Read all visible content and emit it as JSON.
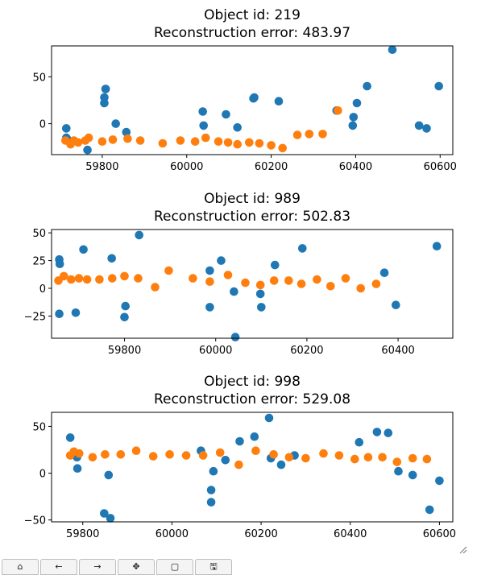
{
  "chart_data": [
    {
      "type": "scatter",
      "title": "Object id: 219\nReconstruction error: 483.97",
      "xlim": [
        59680,
        60630
      ],
      "ylim": [
        -33,
        83
      ],
      "xticks": [
        59800,
        60000,
        60200,
        60400,
        60600
      ],
      "yticks": [
        0,
        50
      ],
      "series": [
        {
          "color": "#1f77b4",
          "x": [
            59715,
            59715,
            59718,
            59765,
            59805,
            59805,
            59808,
            59808,
            59832,
            59857,
            60038,
            60040,
            60093,
            60120,
            60158,
            60160,
            60218,
            60355,
            60393,
            60395,
            60403,
            60427,
            60487,
            60550,
            60568,
            60597
          ],
          "y": [
            -5,
            -15,
            -17,
            -28,
            28,
            22,
            37,
            37,
            0,
            -9,
            13,
            -2,
            10,
            -4,
            27,
            28,
            24,
            14,
            -2,
            7,
            22,
            40,
            79,
            -2,
            -5,
            40
          ]
        },
        {
          "color": "#ff7f0e",
          "x": [
            59713,
            59725,
            59733,
            59743,
            59760,
            59768,
            59800,
            59825,
            59860,
            59890,
            59943,
            59985,
            60020,
            60045,
            60075,
            60098,
            60120,
            60148,
            60172,
            60200,
            60227,
            60262,
            60290,
            60322,
            60358
          ],
          "y": [
            -18,
            -22,
            -18,
            -20,
            -18,
            -15,
            -19,
            -17,
            -16,
            -18,
            -21,
            -18,
            -19,
            -15,
            -19,
            -20,
            -22,
            -20,
            -21,
            -23,
            -26,
            -12,
            -11,
            -11,
            14
          ]
        }
      ]
    },
    {
      "type": "scatter",
      "title": "Object id: 989\nReconstruction error: 502.83",
      "xlim": [
        59640,
        60520
      ],
      "ylim": [
        -45,
        53
      ],
      "xticks": [
        59800,
        60000,
        60200,
        60400
      ],
      "yticks": [
        -25,
        0,
        25,
        50
      ],
      "series": [
        {
          "color": "#1f77b4",
          "x": [
            59657,
            59657,
            59658,
            59693,
            59710,
            59772,
            59800,
            59802,
            59832,
            59987,
            59987,
            60012,
            60040,
            60043,
            60098,
            60100,
            60130,
            60190,
            60370,
            60395,
            60485
          ],
          "y": [
            -23,
            26,
            22,
            -22,
            35,
            27,
            -26,
            -16,
            48,
            16,
            -17,
            25,
            -3,
            -44,
            -5,
            -17,
            21,
            36,
            14,
            -15,
            38
          ]
        },
        {
          "color": "#ff7f0e",
          "x": [
            59655,
            59667,
            59683,
            59700,
            59718,
            59745,
            59773,
            59800,
            59830,
            59867,
            59897,
            59950,
            59987,
            60027,
            60065,
            60098,
            60128,
            60160,
            60188,
            60222,
            60252,
            60285,
            60318,
            60352
          ],
          "y": [
            7,
            11,
            8,
            9,
            8,
            8,
            9,
            11,
            9,
            1,
            16,
            9,
            6,
            12,
            5,
            3,
            7,
            7,
            4,
            8,
            2,
            9,
            0,
            4
          ]
        }
      ]
    },
    {
      "type": "scatter",
      "title": "Object id: 998\nReconstruction error: 529.08",
      "xlim": [
        59730,
        60630
      ],
      "ylim": [
        -52,
        65
      ],
      "xticks": [
        59800,
        60000,
        60200,
        60400,
        60600
      ],
      "yticks": [
        -50,
        0,
        50
      ],
      "series": [
        {
          "color": "#1f77b4",
          "x": [
            59772,
            59787,
            59788,
            59848,
            59858,
            59862,
            60065,
            60088,
            60088,
            60093,
            60120,
            60152,
            60185,
            60218,
            60222,
            60245,
            60275,
            60420,
            60460,
            60485,
            60508,
            60540,
            60578,
            60600
          ],
          "y": [
            38,
            17,
            5,
            -43,
            -2,
            -48,
            24,
            -18,
            -31,
            2,
            14,
            34,
            39,
            59,
            16,
            9,
            19,
            33,
            44,
            43,
            2,
            -2,
            -39,
            -8
          ]
        },
        {
          "color": "#ff7f0e",
          "x": [
            59772,
            59780,
            59792,
            59822,
            59850,
            59885,
            59920,
            59958,
            59995,
            60032,
            60070,
            60108,
            60150,
            60188,
            60228,
            60263,
            60300,
            60340,
            60375,
            60410,
            60440,
            60472,
            60505,
            60540,
            60572
          ],
          "y": [
            19,
            23,
            21,
            17,
            20,
            20,
            24,
            18,
            20,
            19,
            19,
            22,
            9,
            24,
            20,
            17,
            16,
            21,
            19,
            15,
            17,
            17,
            12,
            16,
            15
          ]
        }
      ]
    }
  ],
  "toolbar": {
    "buttons": [
      {
        "name": "home-button",
        "glyph": "⌂"
      },
      {
        "name": "back-button",
        "glyph": "←"
      },
      {
        "name": "forward-button",
        "glyph": "→"
      },
      {
        "name": "pan-button",
        "glyph": "✥"
      },
      {
        "name": "zoom-button",
        "glyph": "▢"
      },
      {
        "name": "save-button",
        "glyph": "🖫"
      }
    ]
  }
}
